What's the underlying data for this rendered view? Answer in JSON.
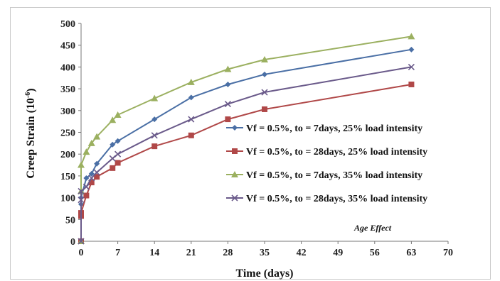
{
  "chart_data": {
    "type": "line",
    "xlabel": "Time (days)",
    "ylabel": "Creep Strain (10",
    "ylabel_sup": "-6",
    "ylabel_close": ")",
    "xlim": [
      0,
      70
    ],
    "ylim": [
      0,
      500
    ],
    "x_ticks": [
      "0",
      "7",
      "14",
      "21",
      "28",
      "35",
      "42",
      "49",
      "56",
      "63",
      "70"
    ],
    "y_ticks": [
      "0",
      "50",
      "100",
      "150",
      "200",
      "250",
      "300",
      "350",
      "400",
      "450",
      "500"
    ],
    "grid": false,
    "legend_position": "right",
    "annotation": {
      "prefix": "Age ",
      "emphasis": "Effect"
    },
    "series": [
      {
        "name": "Vf = 0.5%, to = 7days, 25% load intensity",
        "color": "#4a6fa5",
        "marker": "diamond",
        "points": [
          [
            0,
            0
          ],
          [
            0,
            85
          ],
          [
            0,
            100
          ],
          [
            1,
            145
          ],
          [
            2,
            155
          ],
          [
            3,
            178
          ],
          [
            6,
            222
          ],
          [
            7,
            230
          ],
          [
            14,
            280
          ],
          [
            21,
            330
          ],
          [
            28,
            360
          ],
          [
            35,
            383
          ],
          [
            63,
            440
          ]
        ]
      },
      {
        "name": "Vf = 0.5%, to = 28days, 25% load intensity",
        "color": "#b04848",
        "marker": "square",
        "points": [
          [
            0,
            0
          ],
          [
            0,
            58
          ],
          [
            0,
            65
          ],
          [
            1,
            105
          ],
          [
            2,
            135
          ],
          [
            3,
            148
          ],
          [
            6,
            168
          ],
          [
            7,
            180
          ],
          [
            14,
            218
          ],
          [
            21,
            243
          ],
          [
            28,
            280
          ],
          [
            35,
            303
          ],
          [
            63,
            360
          ]
        ]
      },
      {
        "name": "Vf = 0.5%, to = 7days, 35% load intensity",
        "color": "#9bb060",
        "marker": "triangle",
        "points": [
          [
            0,
            0
          ],
          [
            0,
            115
          ],
          [
            0,
            175
          ],
          [
            1,
            205
          ],
          [
            2,
            225
          ],
          [
            3,
            240
          ],
          [
            6,
            278
          ],
          [
            7,
            290
          ],
          [
            14,
            328
          ],
          [
            21,
            365
          ],
          [
            28,
            395
          ],
          [
            35,
            417
          ],
          [
            63,
            470
          ]
        ]
      },
      {
        "name": "Vf = 0.5%, to = 28days, 35% load intensity",
        "color": "#6a5a8a",
        "marker": "x",
        "points": [
          [
            0,
            0
          ],
          [
            0,
            95
          ],
          [
            0,
            115
          ],
          [
            1,
            125
          ],
          [
            2,
            145
          ],
          [
            3,
            158
          ],
          [
            6,
            190
          ],
          [
            7,
            200
          ],
          [
            14,
            243
          ],
          [
            21,
            280
          ],
          [
            28,
            315
          ],
          [
            35,
            342
          ],
          [
            63,
            400
          ]
        ]
      }
    ]
  }
}
